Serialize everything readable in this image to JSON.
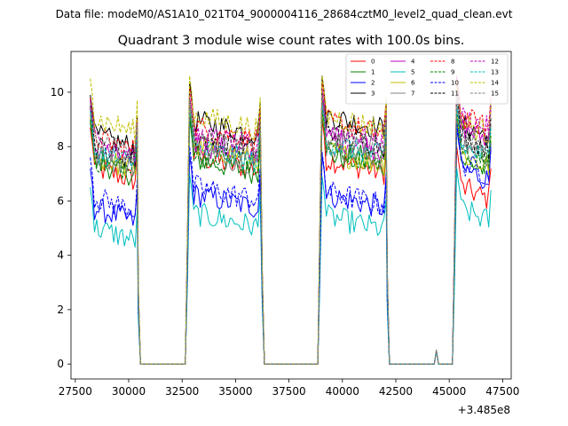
{
  "chart_data": {
    "type": "line",
    "suptitle": "Data file: modeM0/AS1A10_021T04_9000004116_28684cztM0_level2_quad_clean.evt",
    "title": "Quadrant 3 module wise count rates with 100.0s bins.",
    "xlabel": "",
    "ylabel": "",
    "x_offset_label": "+3.485e8",
    "xlim": [
      27300,
      47900
    ],
    "ylim": [
      -0.55,
      11.5
    ],
    "xticks": [
      27500,
      30000,
      32500,
      35000,
      37500,
      40000,
      42500,
      45000,
      47500
    ],
    "yticks": [
      0,
      2,
      4,
      6,
      8,
      10
    ],
    "xtick_labels": [
      "27500",
      "30000",
      "32500",
      "35000",
      "37500",
      "40000",
      "42500",
      "45000",
      "47500"
    ],
    "ytick_labels": [
      "0",
      "2",
      "4",
      "6",
      "8",
      "10"
    ],
    "legend_position": "top-right",
    "legend_columns": 4,
    "segments": [
      {
        "start": 28200,
        "end": 30350
      },
      {
        "start": 32850,
        "end": 36150
      },
      {
        "start": 39050,
        "end": 42000
      },
      {
        "start": 45350,
        "end": 46900
      }
    ],
    "transitions": [
      {
        "x": 30450,
        "frac": 0.35
      },
      {
        "x": 32750,
        "frac": 0.55
      },
      {
        "x": 36250,
        "frac": 0.4
      },
      {
        "x": 38950,
        "frac": 0.6
      },
      {
        "x": 42100,
        "frac": 0.4
      },
      {
        "x": 45250,
        "frac": 0.55
      }
    ],
    "zero_x": [
      30550,
      32650,
      36350,
      38850,
      42200,
      44300,
      44500,
      45150
    ],
    "spike": {
      "x": 44400,
      "y": 0.5
    },
    "series": [
      {
        "name": "0",
        "color": "#ff0000",
        "dash": "solid",
        "levels": [
          7.0,
          7.4,
          7.3,
          6.3
        ]
      },
      {
        "name": "1",
        "color": "#008000",
        "dash": "solid",
        "levels": [
          7.2,
          7.3,
          7.5,
          7.3
        ]
      },
      {
        "name": "2",
        "color": "#0000ff",
        "dash": "solid",
        "levels": [
          5.5,
          6.0,
          6.0,
          7.0
        ]
      },
      {
        "name": "3",
        "color": "#000000",
        "dash": "solid",
        "levels": [
          8.2,
          8.7,
          8.9,
          8.6
        ]
      },
      {
        "name": "4",
        "color": "#bf00bf",
        "dash": "solid",
        "levels": [
          7.7,
          7.9,
          8.1,
          8.5
        ]
      },
      {
        "name": "5",
        "color": "#00bfbf",
        "dash": "solid",
        "levels": [
          4.8,
          5.3,
          5.2,
          5.5
        ]
      },
      {
        "name": "6",
        "color": "#bfbf00",
        "dash": "solid",
        "levels": [
          7.4,
          7.8,
          7.6,
          7.5
        ]
      },
      {
        "name": "7",
        "color": "#808080",
        "dash": "solid",
        "levels": [
          7.5,
          7.6,
          7.8,
          7.9
        ]
      },
      {
        "name": "8",
        "color": "#ff0000",
        "dash": "dashed",
        "levels": [
          8.1,
          8.5,
          8.7,
          8.9
        ]
      },
      {
        "name": "9",
        "color": "#008000",
        "dash": "dashed",
        "levels": [
          7.3,
          7.5,
          7.7,
          7.6
        ]
      },
      {
        "name": "10",
        "color": "#0000ff",
        "dash": "dashed",
        "levels": [
          5.9,
          6.3,
          6.1,
          7.2
        ]
      },
      {
        "name": "11",
        "color": "#000000",
        "dash": "dashed",
        "levels": [
          7.8,
          8.1,
          8.3,
          8.2
        ]
      },
      {
        "name": "12",
        "color": "#bf00bf",
        "dash": "dashed",
        "levels": [
          8.0,
          8.2,
          8.4,
          8.9
        ]
      },
      {
        "name": "13",
        "color": "#00bfbf",
        "dash": "dashed",
        "levels": [
          7.6,
          7.7,
          7.9,
          7.8
        ]
      },
      {
        "name": "14",
        "color": "#bfbf00",
        "dash": "dashed",
        "levels": [
          8.8,
          8.9,
          8.9,
          8.7
        ]
      },
      {
        "name": "15",
        "color": "#808080",
        "dash": "dashed",
        "levels": [
          7.9,
          8.0,
          8.2,
          8.3
        ]
      }
    ]
  }
}
